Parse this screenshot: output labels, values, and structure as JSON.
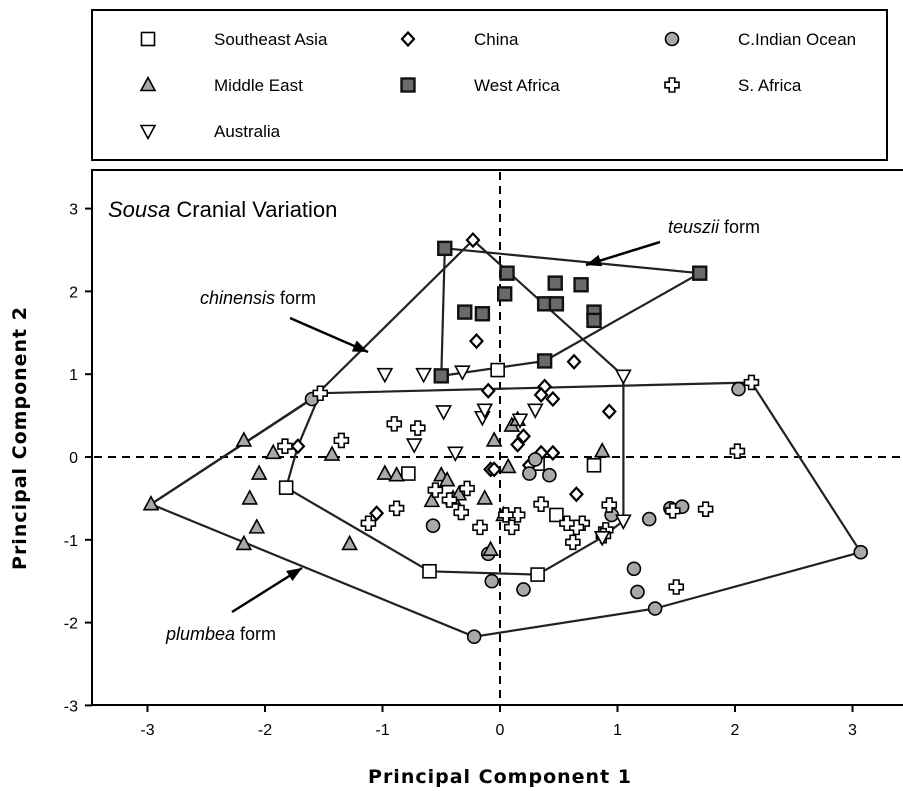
{
  "chart_data": {
    "type": "scatter",
    "title_italic": "Sousa",
    "title_rest": "Cranial Variation",
    "xlabel": "Principal  Component  1",
    "ylabel": "Principal  Component  2",
    "xlim": [
      -3.5,
      3.4
    ],
    "ylim": [
      -3,
      3.4
    ],
    "xticks": [
      -3,
      -2,
      -1,
      0,
      1,
      2,
      3
    ],
    "yticks": [
      -3,
      -2,
      -1,
      0,
      1,
      2,
      3
    ],
    "series": [
      {
        "name": "Southeast Asia",
        "marker": "square",
        "color": "#ffffff",
        "points": [
          [
            -0.6,
            -1.38
          ],
          [
            0.32,
            -1.42
          ],
          [
            -1.82,
            -0.37
          ],
          [
            -0.78,
            -0.2
          ],
          [
            0.32,
            -0.08
          ],
          [
            0.8,
            -0.1
          ],
          [
            0.48,
            -0.7
          ],
          [
            -0.02,
            1.05
          ]
        ]
      },
      {
        "name": "China",
        "marker": "diamond",
        "color": "#ffffff",
        "points": [
          [
            -0.23,
            2.62
          ],
          [
            -0.2,
            1.4
          ],
          [
            0.63,
            1.15
          ],
          [
            -0.1,
            0.8
          ],
          [
            0.38,
            0.85
          ],
          [
            0.45,
            0.7
          ],
          [
            0.2,
            0.25
          ],
          [
            0.93,
            0.55
          ],
          [
            0.35,
            0.75
          ],
          [
            0.15,
            0.15
          ],
          [
            0.35,
            0.05
          ],
          [
            0.45,
            0.05
          ],
          [
            -0.08,
            -0.15
          ],
          [
            0.25,
            -0.1
          ],
          [
            0.65,
            -0.45
          ],
          [
            -1.05,
            -0.68
          ],
          [
            -1.72,
            0.13
          ],
          [
            -0.05,
            -0.15
          ]
        ]
      },
      {
        "name": "C.Indian Ocean",
        "marker": "circle",
        "color": "#a8a8a8",
        "points": [
          [
            -1.6,
            0.7
          ],
          [
            2.03,
            0.82
          ],
          [
            3.07,
            -1.15
          ],
          [
            -0.22,
            -2.17
          ],
          [
            1.32,
            -1.83
          ],
          [
            1.17,
            -1.63
          ],
          [
            1.14,
            -1.35
          ],
          [
            0.2,
            -1.6
          ],
          [
            -0.07,
            -1.5
          ],
          [
            -0.1,
            -1.17
          ],
          [
            -0.57,
            -0.83
          ],
          [
            1.45,
            -0.62
          ],
          [
            1.55,
            -0.6
          ],
          [
            1.27,
            -0.75
          ],
          [
            0.95,
            -0.7
          ],
          [
            0.42,
            -0.22
          ],
          [
            0.3,
            -0.03
          ],
          [
            0.25,
            -0.2
          ]
        ]
      },
      {
        "name": "Middle East",
        "marker": "triangle-up",
        "color": "#a8a8a8",
        "points": [
          [
            -2.97,
            -0.57
          ],
          [
            -2.18,
            -1.05
          ],
          [
            -2.07,
            -0.85
          ],
          [
            -2.13,
            -0.5
          ],
          [
            -2.05,
            -0.2
          ],
          [
            -2.18,
            0.2
          ],
          [
            -1.93,
            0.05
          ],
          [
            -1.43,
            0.03
          ],
          [
            -1.28,
            -1.05
          ],
          [
            -0.98,
            -0.2
          ],
          [
            -0.88,
            -0.22
          ],
          [
            -0.5,
            -0.22
          ],
          [
            -0.45,
            -0.28
          ],
          [
            -0.4,
            -0.5
          ],
          [
            -0.35,
            -0.45
          ],
          [
            -0.58,
            -0.53
          ],
          [
            -0.13,
            -0.5
          ],
          [
            -0.08,
            -1.12
          ],
          [
            -0.05,
            0.2
          ],
          [
            0.1,
            0.38
          ],
          [
            0.15,
            0.45
          ],
          [
            0.07,
            -0.12
          ],
          [
            0.03,
            -0.7
          ],
          [
            0.87,
            0.07
          ]
        ]
      },
      {
        "name": "West Africa",
        "marker": "square-filled",
        "color": "#6a6a6a",
        "points": [
          [
            -0.47,
            2.52
          ],
          [
            0.06,
            2.22
          ],
          [
            0.04,
            1.97
          ],
          [
            0.47,
            2.1
          ],
          [
            0.69,
            2.08
          ],
          [
            0.38,
            1.85
          ],
          [
            0.48,
            1.85
          ],
          [
            0.8,
            1.75
          ],
          [
            0.8,
            1.65
          ],
          [
            1.7,
            2.22
          ],
          [
            -0.3,
            1.75
          ],
          [
            -0.15,
            1.73
          ],
          [
            -0.5,
            0.98
          ],
          [
            0.38,
            1.16
          ]
        ]
      },
      {
        "name": "S. Africa",
        "marker": "cross",
        "color": "#ffffff",
        "points": [
          [
            -1.53,
            0.77
          ],
          [
            2.14,
            0.9
          ],
          [
            2.02,
            0.07
          ],
          [
            1.5,
            -1.57
          ],
          [
            1.75,
            -0.63
          ],
          [
            1.47,
            -0.65
          ],
          [
            0.93,
            -0.58
          ],
          [
            0.9,
            -0.88
          ],
          [
            0.88,
            -0.95
          ],
          [
            0.7,
            -0.8
          ],
          [
            0.65,
            -0.85
          ],
          [
            0.57,
            -0.8
          ],
          [
            0.62,
            -1.03
          ],
          [
            0.35,
            -0.57
          ],
          [
            0.15,
            -0.7
          ],
          [
            0.1,
            -0.85
          ],
          [
            0.05,
            -0.7
          ],
          [
            -0.33,
            -0.67
          ],
          [
            -0.28,
            -0.38
          ],
          [
            -0.55,
            -0.4
          ],
          [
            -0.88,
            -0.62
          ],
          [
            -1.12,
            -0.8
          ],
          [
            -0.9,
            0.4
          ],
          [
            -0.7,
            0.35
          ],
          [
            -1.35,
            0.2
          ],
          [
            -1.83,
            0.13
          ],
          [
            -0.17,
            -0.85
          ],
          [
            -0.43,
            -0.52
          ]
        ]
      },
      {
        "name": "Australia",
        "marker": "triangle-down",
        "color": "#ffffff",
        "points": [
          [
            -0.65,
            1.0
          ],
          [
            -0.32,
            1.03
          ],
          [
            -0.15,
            0.48
          ],
          [
            -0.48,
            0.55
          ],
          [
            -0.73,
            0.15
          ],
          [
            -0.38,
            0.05
          ],
          [
            -0.98,
            1.0
          ],
          [
            -0.13,
            0.57
          ],
          [
            0.17,
            0.45
          ],
          [
            0.3,
            0.57
          ],
          [
            1.05,
            0.98
          ],
          [
            1.05,
            -0.77
          ],
          [
            0.87,
            -0.97
          ]
        ]
      }
    ],
    "hulls": [
      {
        "name": "chinensis",
        "points": [
          [
            -2.97,
            -0.57
          ],
          [
            -1.6,
            0.7
          ],
          [
            -0.23,
            2.62
          ],
          [
            1.05,
            0.98
          ],
          [
            1.05,
            -0.77
          ],
          [
            0.87,
            -0.97
          ],
          [
            0.32,
            -1.42
          ],
          [
            -0.6,
            -1.38
          ],
          [
            -1.82,
            -0.37
          ],
          [
            -1.72,
            0.13
          ],
          [
            -1.53,
            0.77
          ]
        ]
      },
      {
        "name": "teuszii",
        "points": [
          [
            -0.47,
            2.52
          ],
          [
            1.7,
            2.22
          ],
          [
            0.38,
            1.16
          ],
          [
            -0.5,
            0.98
          ]
        ]
      },
      {
        "name": "plumbea",
        "points": [
          [
            -2.97,
            -0.57
          ],
          [
            -1.6,
            0.7
          ],
          [
            -1.53,
            0.77
          ],
          [
            2.14,
            0.9
          ],
          [
            3.07,
            -1.15
          ],
          [
            1.32,
            -1.83
          ],
          [
            -0.22,
            -2.17
          ],
          [
            -2.97,
            -0.57
          ]
        ]
      }
    ],
    "annotations": [
      {
        "italic": "chinensis",
        "rest": " form"
      },
      {
        "italic": "teuszii",
        "rest": " form"
      },
      {
        "italic": "plumbea",
        "rest": " form"
      }
    ],
    "legend_position": "top",
    "grid": false
  }
}
